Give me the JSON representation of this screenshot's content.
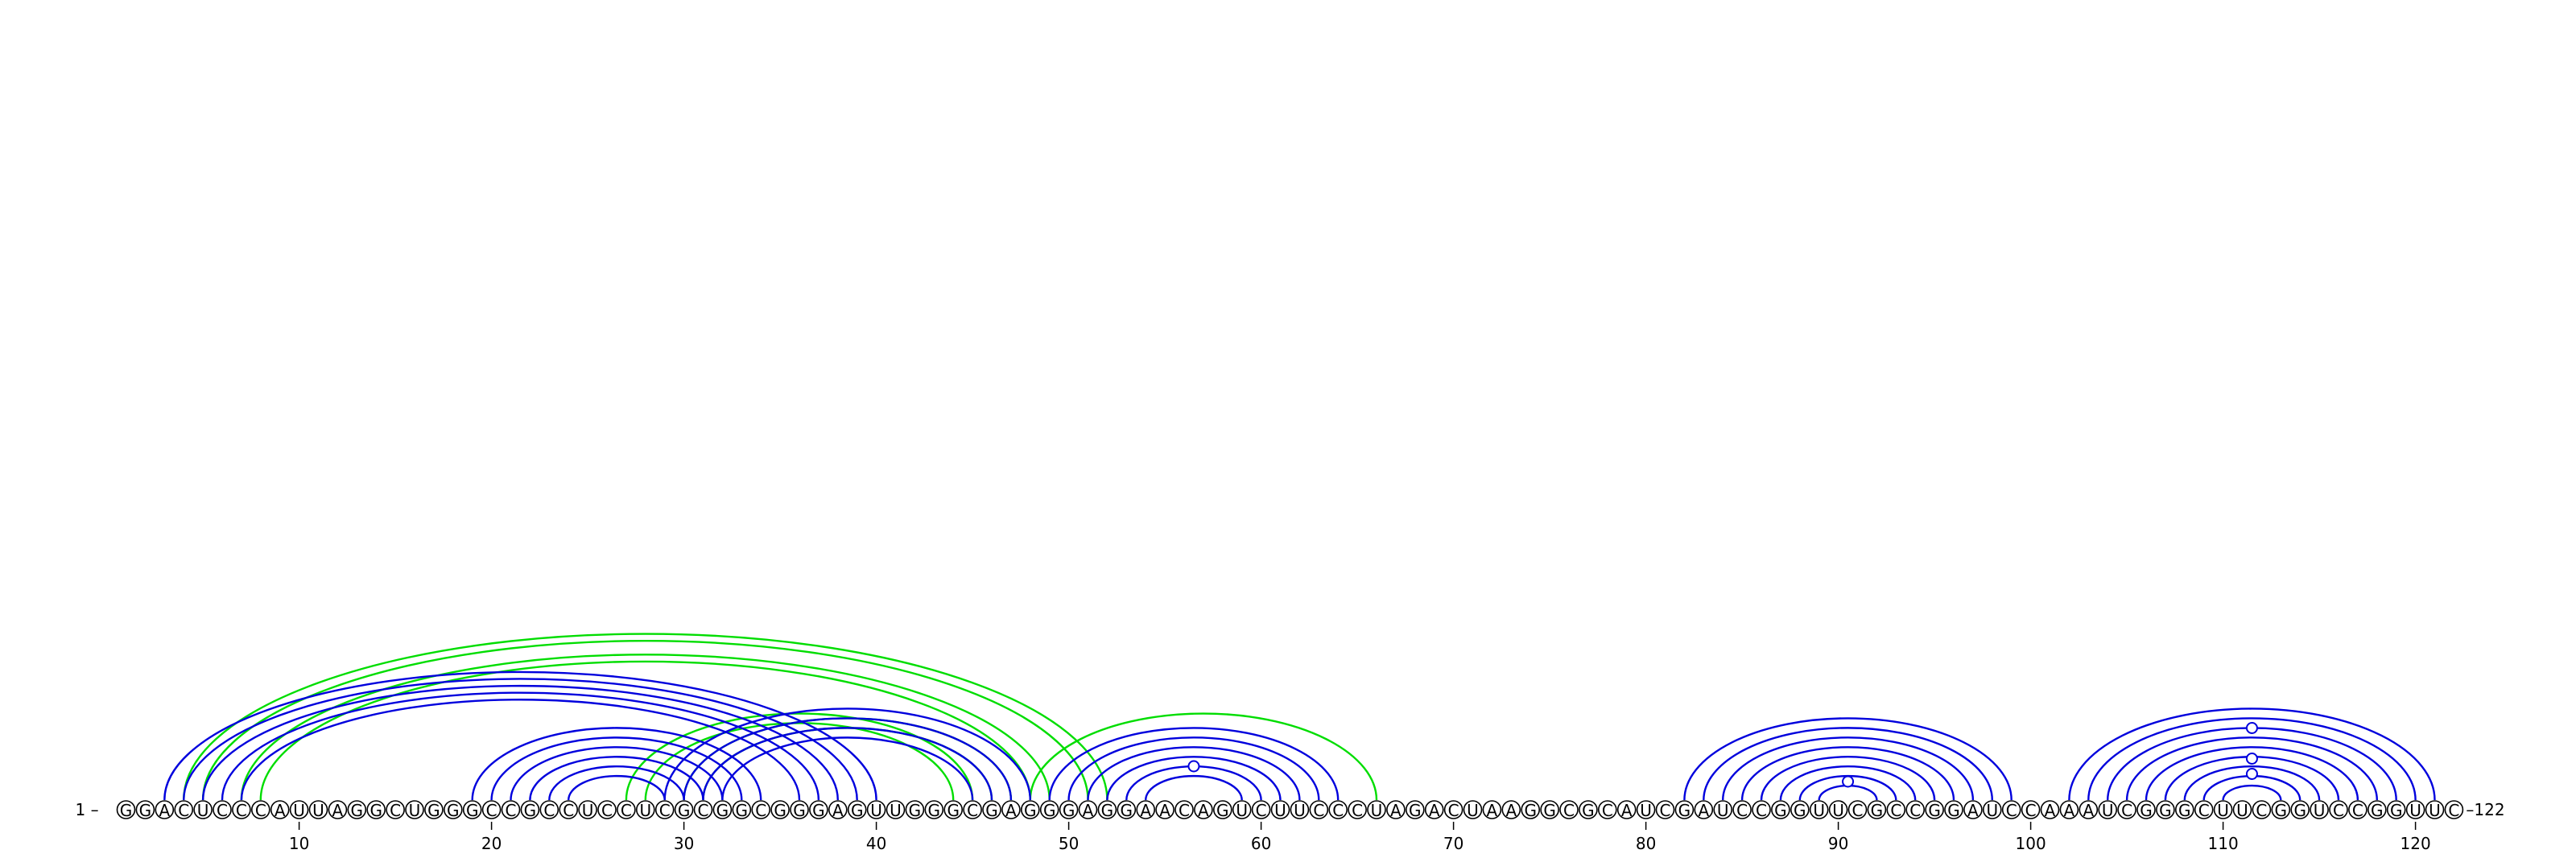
{
  "sequence": "GGACUCCCAUUAGGCUGGGCCGCCUCCUCGCGGCGGGAGUUGGGCGAGGGAGGAACAGUCUUCCCUAGACUAAGGCGCAUCGAUCCGGUUCGCCGGAUCCAAAUCGGGCUUCGGUCCGGUUC",
  "start_label": "1 –",
  "end_label": "–122",
  "tick_labels": [
    "10",
    "20",
    "30",
    "40",
    "50",
    "60",
    "70",
    "80",
    "90",
    "100",
    "110",
    "120"
  ],
  "tick_positions": [
    10,
    20,
    30,
    40,
    50,
    60,
    70,
    80,
    90,
    100,
    110,
    120
  ],
  "colors": {
    "primary_structure": "#0000dd",
    "alternative_structure": "#00dd00"
  },
  "primary_pairs": [
    [
      3,
      40
    ],
    [
      4,
      39
    ],
    [
      5,
      38
    ],
    [
      6,
      37
    ],
    [
      7,
      36
    ],
    [
      19,
      34
    ],
    [
      20,
      33
    ],
    [
      21,
      32
    ],
    [
      22,
      31
    ],
    [
      23,
      30
    ],
    [
      24,
      29
    ],
    [
      29,
      48
    ],
    [
      30,
      47
    ],
    [
      31,
      46
    ],
    [
      32,
      45
    ],
    [
      49,
      64
    ],
    [
      50,
      63
    ],
    [
      51,
      62
    ],
    [
      52,
      61
    ],
    [
      53,
      60
    ],
    [
      54,
      59
    ],
    [
      82,
      99
    ],
    [
      83,
      98
    ],
    [
      84,
      97
    ],
    [
      85,
      96
    ],
    [
      86,
      95
    ],
    [
      87,
      94
    ],
    [
      88,
      93
    ],
    [
      89,
      92
    ],
    [
      102,
      121
    ],
    [
      103,
      120
    ],
    [
      104,
      119
    ],
    [
      105,
      118
    ],
    [
      106,
      117
    ],
    [
      107,
      116
    ],
    [
      108,
      115
    ],
    [
      109,
      114
    ],
    [
      110,
      113
    ]
  ],
  "alternative_pairs": [
    [
      4,
      52
    ],
    [
      5,
      51
    ],
    [
      7,
      49
    ],
    [
      8,
      48
    ],
    [
      27,
      45
    ],
    [
      28,
      44
    ],
    [
      30,
      47
    ],
    [
      31,
      46
    ],
    [
      48,
      66
    ]
  ],
  "gu_markers": [
    {
      "position": 56.5,
      "level": 4,
      "structure": "primary"
    },
    {
      "position": 90.5,
      "level": 2,
      "structure": "primary"
    },
    {
      "position": 111.5,
      "level": 9,
      "structure": "primary"
    },
    {
      "position": 111.5,
      "level": 5,
      "structure": "primary"
    },
    {
      "position": 111.5,
      "level": 3,
      "structure": "primary"
    }
  ]
}
